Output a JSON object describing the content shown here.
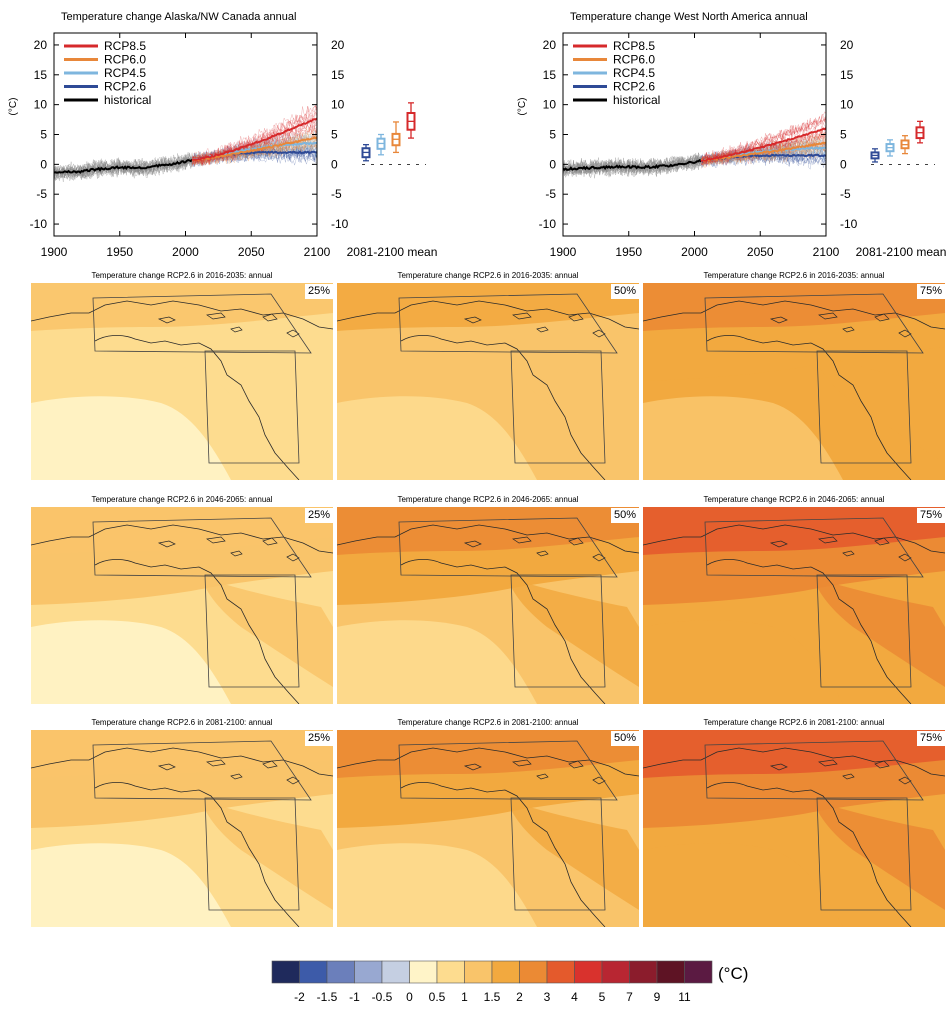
{
  "colors": {
    "rcp85": "#d6292b",
    "rcp60": "#e8873a",
    "rcp45": "#7eb6de",
    "rcp26": "#2e4a96",
    "historical": "#000000",
    "historical_spread": "#888888",
    "coast": "#2a2a2a"
  },
  "chart_data": [
    {
      "type": "line",
      "title": "Temperature change Alaska/NW Canada annual",
      "ylabel": "(°C)",
      "xlim": [
        1900,
        2100
      ],
      "ylim": [
        -12,
        22
      ],
      "xticks": [
        "1900",
        "1950",
        "2000",
        "2050",
        "2100"
      ],
      "yticks": [
        "-10",
        "-5",
        "0",
        "5",
        "10",
        "15",
        "20"
      ],
      "grid": false,
      "legend_position": "top-left",
      "legend": [
        "RCP8.5",
        "RCP6.0",
        "RCP4.5",
        "RCP2.6",
        "historical"
      ],
      "historical": {
        "name": "historical",
        "x": [
          1900,
          1910,
          1920,
          1930,
          1940,
          1950,
          1960,
          1970,
          1980,
          1990,
          2000,
          2005
        ],
        "y": [
          -1.4,
          -1.3,
          -1.2,
          -0.9,
          -0.7,
          -0.5,
          -0.6,
          -0.6,
          -0.2,
          0.0,
          0.5,
          0.7
        ]
      },
      "series": [
        {
          "name": "RCP8.5",
          "x": [
            2005,
            2020,
            2040,
            2060,
            2080,
            2100
          ],
          "y": [
            0.7,
            1.3,
            2.6,
            4.1,
            5.9,
            7.7
          ]
        },
        {
          "name": "RCP6.0",
          "x": [
            2005,
            2020,
            2040,
            2060,
            2080,
            2100
          ],
          "y": [
            0.7,
            1.1,
            1.9,
            2.7,
            3.6,
            4.5
          ]
        },
        {
          "name": "RCP4.5",
          "x": [
            2005,
            2020,
            2040,
            2060,
            2080,
            2100
          ],
          "y": [
            0.7,
            1.3,
            2.2,
            2.9,
            3.3,
            3.6
          ]
        },
        {
          "name": "RCP2.6",
          "x": [
            2005,
            2020,
            2040,
            2060,
            2080,
            2100
          ],
          "y": [
            0.7,
            1.2,
            1.8,
            2.0,
            2.0,
            2.0
          ]
        }
      ],
      "box_label": "2081-2100 mean",
      "boxes": [
        {
          "name": "RCP2.6",
          "whisker_low": 0.6,
          "q1": 1.2,
          "median": 2.0,
          "q3": 2.7,
          "whisker_high": 3.3
        },
        {
          "name": "RCP4.5",
          "whisker_low": 1.6,
          "q1": 2.6,
          "median": 3.5,
          "q3": 4.3,
          "whisker_high": 5.0
        },
        {
          "name": "RCP6.0",
          "whisker_low": 2.0,
          "q1": 3.2,
          "median": 4.2,
          "q3": 5.1,
          "whisker_high": 7.1
        },
        {
          "name": "RCP8.5",
          "whisker_low": 4.4,
          "q1": 5.8,
          "median": 7.2,
          "q3": 8.6,
          "whisker_high": 10.3
        }
      ]
    },
    {
      "type": "line",
      "title": "Temperature change West North America annual",
      "ylabel": "(°C)",
      "xlim": [
        1900,
        2100
      ],
      "ylim": [
        -12,
        22
      ],
      "xticks": [
        "1900",
        "1950",
        "2000",
        "2050",
        "2100"
      ],
      "yticks": [
        "-10",
        "-5",
        "0",
        "5",
        "10",
        "15",
        "20"
      ],
      "grid": false,
      "legend_position": "top-left",
      "legend": [
        "RCP8.5",
        "RCP6.0",
        "RCP4.5",
        "RCP2.6",
        "historical"
      ],
      "historical": {
        "name": "historical",
        "x": [
          1900,
          1910,
          1920,
          1930,
          1940,
          1950,
          1960,
          1970,
          1980,
          1990,
          2000,
          2005
        ],
        "y": [
          -0.8,
          -0.7,
          -0.6,
          -0.5,
          -0.4,
          -0.4,
          -0.5,
          -0.4,
          -0.2,
          0.1,
          0.4,
          0.6
        ]
      },
      "series": [
        {
          "name": "RCP8.5",
          "x": [
            2005,
            2020,
            2040,
            2060,
            2080,
            2100
          ],
          "y": [
            0.6,
            1.2,
            2.2,
            3.4,
            4.7,
            6.0
          ]
        },
        {
          "name": "RCP6.0",
          "x": [
            2005,
            2020,
            2040,
            2060,
            2080,
            2100
          ],
          "y": [
            0.6,
            1.0,
            1.6,
            2.2,
            2.9,
            3.6
          ]
        },
        {
          "name": "RCP4.5",
          "x": [
            2005,
            2020,
            2040,
            2060,
            2080,
            2100
          ],
          "y": [
            0.6,
            1.1,
            1.8,
            2.3,
            2.6,
            2.8
          ]
        },
        {
          "name": "RCP2.6",
          "x": [
            2005,
            2020,
            2040,
            2060,
            2080,
            2100
          ],
          "y": [
            0.6,
            1.0,
            1.4,
            1.5,
            1.5,
            1.5
          ]
        }
      ],
      "box_label": "2081-2100 mean",
      "boxes": [
        {
          "name": "RCP2.6",
          "whisker_low": 0.4,
          "q1": 1.0,
          "median": 1.5,
          "q3": 2.0,
          "whisker_high": 2.6
        },
        {
          "name": "RCP4.5",
          "whisker_low": 1.4,
          "q1": 2.2,
          "median": 2.8,
          "q3": 3.4,
          "whisker_high": 4.1
        },
        {
          "name": "RCP6.0",
          "whisker_low": 1.8,
          "q1": 2.7,
          "median": 3.3,
          "q3": 4.0,
          "whisker_high": 4.8
        },
        {
          "name": "RCP8.5",
          "whisker_low": 3.6,
          "q1": 4.4,
          "median": 5.3,
          "q3": 6.2,
          "whisker_high": 7.2
        }
      ]
    },
    {
      "type": "heatmap",
      "unit": "(°C)",
      "colorbar": {
        "labels": [
          "-2",
          "-1.5",
          "-1",
          "-0.5",
          "0",
          "0.5",
          "1",
          "1.5",
          "2",
          "3",
          "4",
          "5",
          "7",
          "9",
          "11"
        ],
        "colors": [
          "#1f2a5c",
          "#3d5ba9",
          "#6b7fbb",
          "#98a8d1",
          "#c5cfe2",
          "#fff4c8",
          "#fddc8f",
          "#f9c46a",
          "#f2a93f",
          "#eb8a34",
          "#e45a2c",
          "#d9322d",
          "#b82632",
          "#8b1c2c",
          "#5e1324",
          "#5b1a42"
        ]
      },
      "panels": [
        {
          "title": "Temperature change RCP2.6 in 2016-2035: annual",
          "percentile": "25%",
          "level": 1
        },
        {
          "title": "Temperature change RCP2.6 in 2016-2035: annual",
          "percentile": "50%",
          "level": 2
        },
        {
          "title": "Temperature change RCP2.6 in 2016-2035: annual",
          "percentile": "75%",
          "level": 3
        },
        {
          "title": "Temperature change RCP2.6 in 2046-2065: annual",
          "percentile": "25%",
          "level": 1.5
        },
        {
          "title": "Temperature change RCP2.6 in 2046-2065: annual",
          "percentile": "50%",
          "level": 2.7
        },
        {
          "title": "Temperature change RCP2.6 in 2046-2065: annual",
          "percentile": "75%",
          "level": 3.8
        },
        {
          "title": "Temperature change RCP2.6 in 2081-2100: annual",
          "percentile": "25%",
          "level": 1.5
        },
        {
          "title": "Temperature change RCP2.6 in 2081-2100: annual",
          "percentile": "50%",
          "level": 2.7
        },
        {
          "title": "Temperature change RCP2.6 in 2081-2100: annual",
          "percentile": "75%",
          "level": 3.9
        }
      ]
    }
  ]
}
